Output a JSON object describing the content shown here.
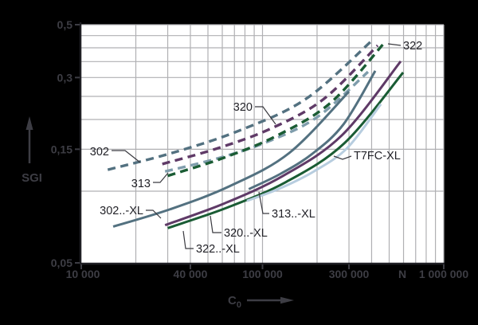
{
  "chart_data": {
    "type": "line",
    "title": "",
    "ylabel": "SGI",
    "xlabel": "C0",
    "xlabel_main": "C",
    "xlabel_sub": "0",
    "x_unit": "N",
    "x_scale": "log",
    "y_scale": "log",
    "xlim": [
      10000,
      1000000
    ],
    "ylim": [
      0.05,
      0.5
    ],
    "grid": true,
    "x_ticks": [
      {
        "value": 10000,
        "label": "10 000"
      },
      {
        "value": 40000,
        "label": "40 000"
      },
      {
        "value": 100000,
        "label": "100 000"
      },
      {
        "value": 300000,
        "label": "300 000"
      },
      {
        "value": 1000000,
        "label": "1 000 000"
      }
    ],
    "y_ticks": [
      {
        "value": 0.5,
        "label": "0,5"
      },
      {
        "value": 0.3,
        "label": "0,3"
      },
      {
        "value": 0.15,
        "label": "0,15"
      },
      {
        "value": 0.05,
        "label": "0,05"
      }
    ],
    "x_gridlines": [
      20000,
      30000,
      40000,
      50000,
      60000,
      70000,
      80000,
      90000,
      100000,
      200000,
      300000,
      400000,
      500000,
      600000,
      700000,
      800000,
      900000,
      1000000
    ],
    "y_gridlines": [
      0.1,
      0.15,
      0.2,
      0.25,
      0.3,
      0.35,
      0.4,
      0.45,
      0.5
    ],
    "series": [
      {
        "id": "302",
        "name": "302",
        "style": "dashed",
        "color": "#537180",
        "points": [
          [
            14000,
            0.123
          ],
          [
            32000,
            0.145
          ],
          [
            75000,
            0.18
          ],
          [
            175000,
            0.245
          ],
          [
            406000,
            0.432
          ]
        ]
      },
      {
        "id": "320",
        "name": "320",
        "style": "dashed",
        "color": "#5f3a67",
        "points": [
          [
            28000,
            0.13
          ],
          [
            56000,
            0.151
          ],
          [
            111000,
            0.183
          ],
          [
            218000,
            0.244
          ],
          [
            432000,
            0.409
          ]
        ]
      },
      {
        "id": "313",
        "name": "313",
        "style": "dashed",
        "color": "#7f9dac",
        "points": [
          [
            29000,
            0.121
          ],
          [
            56000,
            0.137
          ],
          [
            106000,
            0.161
          ],
          [
            201000,
            0.205
          ],
          [
            382000,
            0.317
          ]
        ]
      },
      {
        "id": "322",
        "name": "322",
        "style": "dashed",
        "color": "#1a5c34",
        "points": [
          [
            30000,
            0.116
          ],
          [
            61000,
            0.138
          ],
          [
            120000,
            0.171
          ],
          [
            239000,
            0.236
          ],
          [
            473000,
            0.422
          ]
        ]
      },
      {
        "id": "302XL",
        "name": "302..-XL",
        "style": "solid",
        "color": "#537180",
        "points": [
          [
            15000,
            0.071
          ],
          [
            31000,
            0.084
          ],
          [
            66000,
            0.105
          ],
          [
            141000,
            0.145
          ],
          [
            300000,
            0.262
          ]
        ]
      },
      {
        "id": "320XL",
        "name": "320..-XL",
        "style": "solid",
        "color": "#5f3a67",
        "points": [
          [
            29000,
            0.072
          ],
          [
            62000,
            0.089
          ],
          [
            130000,
            0.116
          ],
          [
            275000,
            0.172
          ],
          [
            579000,
            0.351
          ]
        ]
      },
      {
        "id": "313XL",
        "name": "313..-XL",
        "style": "solid",
        "color": "#537180",
        "points": [
          [
            84000,
            0.102
          ],
          [
            125000,
            0.118
          ],
          [
            187000,
            0.143
          ],
          [
            280000,
            0.191
          ],
          [
            419000,
            0.32
          ]
        ]
      },
      {
        "id": "322XL",
        "name": "322..-XL",
        "style": "solid",
        "color": "#1a5c34",
        "points": [
          [
            30000,
            0.07
          ],
          [
            63000,
            0.085
          ],
          [
            134000,
            0.109
          ],
          [
            283000,
            0.159
          ],
          [
            597000,
            0.315
          ]
        ]
      },
      {
        "id": "T7FC",
        "name": "T7FC-XL",
        "style": "solid",
        "color": "#b7cddf",
        "points": [
          [
            82000,
            0.091
          ],
          [
            126000,
            0.103
          ],
          [
            192000,
            0.121
          ],
          [
            294000,
            0.152
          ],
          [
            450000,
            0.232
          ]
        ]
      }
    ],
    "colors": {
      "background": "#000000",
      "plot_background": "#ffffff",
      "grid": "#b0b0b3",
      "axis": "#1f1f24",
      "tick_text": "#3d3d44",
      "label_text": "#232329",
      "leader": "#3a3a40"
    },
    "legend_position": "none"
  }
}
